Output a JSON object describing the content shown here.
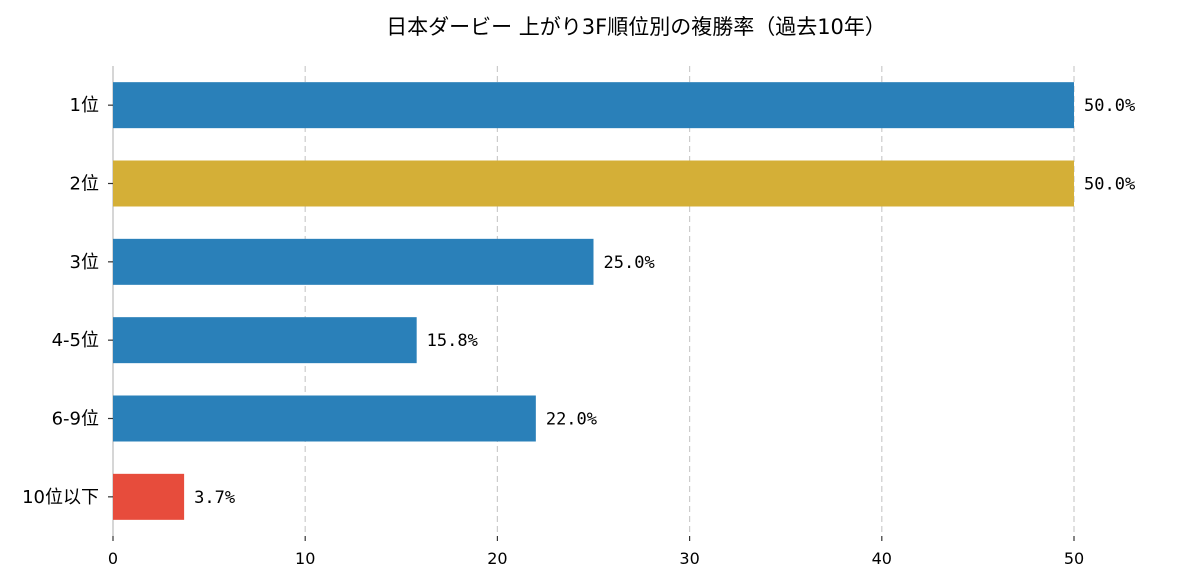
{
  "chart_data": {
    "type": "bar",
    "orientation": "horizontal",
    "title": "日本ダービー 上がり3F順位別の複勝率（過去10年）",
    "categories": [
      "1位",
      "2位",
      "3位",
      "4-5位",
      "6-9位",
      "10位以下"
    ],
    "values": [
      50.0,
      50.0,
      25.0,
      15.8,
      22.0,
      3.7
    ],
    "data_labels": [
      "50.0%",
      "50.0%",
      "25.0%",
      "15.8%",
      "22.0%",
      "3.7%"
    ],
    "colors": [
      "#2a80b9",
      "#d4af37",
      "#2a80b9",
      "#2a80b9",
      "#2a80b9",
      "#e74c3c"
    ],
    "xlim": [
      0,
      50
    ],
    "xticks": [
      0,
      10,
      20,
      30,
      40,
      50
    ],
    "xlabel": "",
    "ylabel": "",
    "grid": "vertical-dashed",
    "legend": "none"
  }
}
